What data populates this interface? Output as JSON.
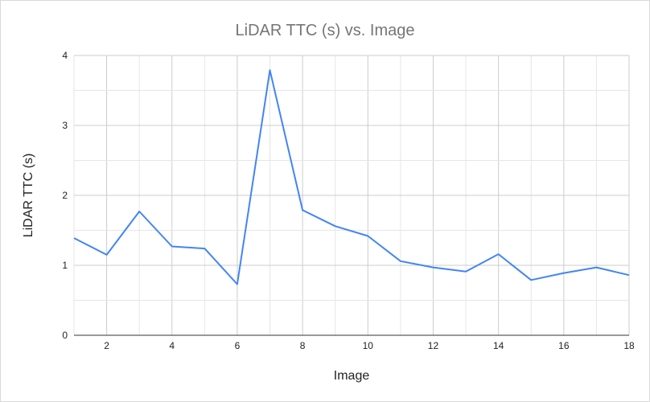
{
  "chart_data": {
    "type": "line",
    "title": "LiDAR TTC (s) vs. Image",
    "xlabel": "Image",
    "ylabel": "LiDAR TTC (s)",
    "xlim": [
      1,
      18
    ],
    "ylim": [
      0,
      4
    ],
    "x_ticks": [
      2,
      4,
      6,
      8,
      10,
      12,
      14,
      16,
      18
    ],
    "y_ticks": [
      0,
      1,
      2,
      3,
      4
    ],
    "grid": true,
    "legend": "none",
    "series": [
      {
        "color": "#4285f4",
        "x": [
          1,
          2,
          3,
          4,
          5,
          6,
          7,
          8,
          9,
          10,
          11,
          12,
          13,
          14,
          15,
          16,
          17,
          18
        ],
        "y": [
          1.39,
          1.15,
          1.77,
          1.27,
          1.24,
          0.73,
          3.79,
          1.79,
          1.56,
          1.42,
          1.06,
          0.97,
          0.91,
          1.16,
          0.79,
          0.89,
          0.97,
          0.86
        ]
      }
    ]
  }
}
